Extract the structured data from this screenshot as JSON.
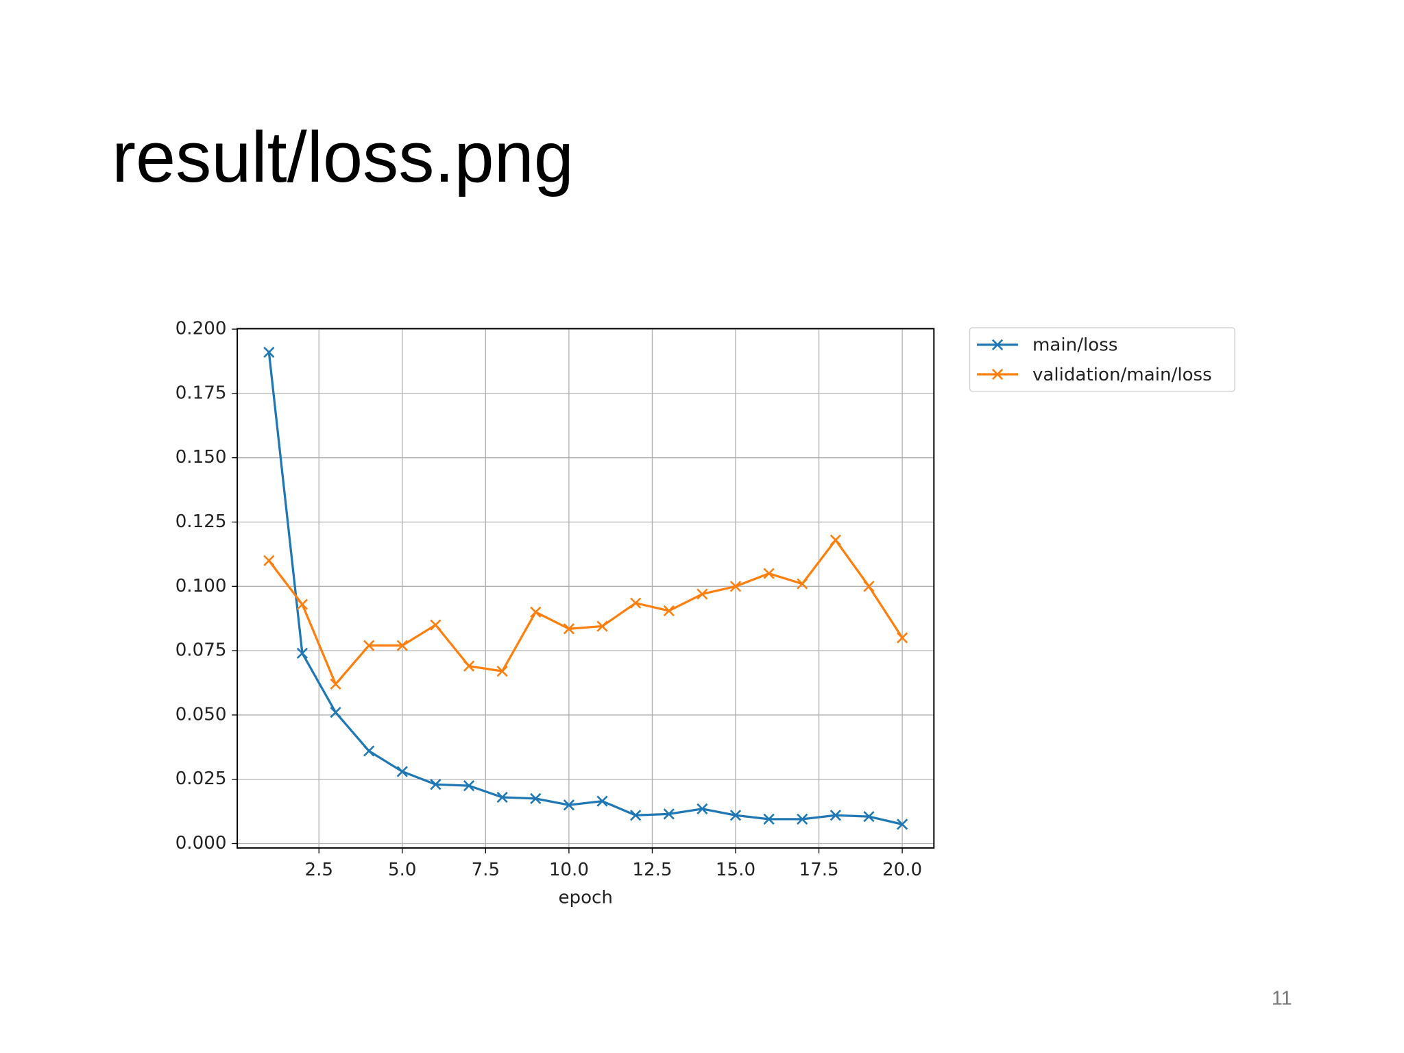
{
  "title": "result/loss.png",
  "page_number": "11",
  "chart_data": {
    "type": "line",
    "xlabel": "epoch",
    "x": [
      1,
      2,
      3,
      4,
      5,
      6,
      7,
      8,
      9,
      10,
      11,
      12,
      13,
      14,
      15,
      16,
      17,
      18,
      19,
      20
    ],
    "series": [
      {
        "name": "main/loss",
        "color": "#1f77b4",
        "values": [
          0.191,
          0.074,
          0.051,
          0.036,
          0.028,
          0.023,
          0.0225,
          0.018,
          0.0175,
          0.015,
          0.0165,
          0.011,
          0.0115,
          0.0135,
          0.011,
          0.0095,
          0.0095,
          0.011,
          0.0105,
          0.0075
        ]
      },
      {
        "name": "validation/main/loss",
        "color": "#ff7f0e",
        "values": [
          0.11,
          0.093,
          0.062,
          0.077,
          0.077,
          0.085,
          0.069,
          0.067,
          0.09,
          0.0835,
          0.0845,
          0.0935,
          0.0905,
          0.097,
          0.1,
          0.105,
          0.101,
          0.118,
          0.1,
          0.08
        ]
      }
    ],
    "xlim": [
      0.05,
      20.95
    ],
    "xticks": [
      2.5,
      {
        "value": 5,
        "label": "5.0"
      },
      7.5,
      {
        "value": 10,
        "label": "10.0"
      },
      12.5,
      {
        "value": 15,
        "label": "15.0"
      },
      17.5,
      {
        "value": 20,
        "label": "20.0"
      }
    ],
    "ylim": [
      -0.0017,
      0.2002
    ],
    "yticks": [
      {
        "value": 0,
        "label": "0.000"
      },
      {
        "value": 0.025,
        "label": "0.025"
      },
      {
        "value": 0.05,
        "label": "0.050"
      },
      {
        "value": 0.075,
        "label": "0.075"
      },
      {
        "value": 0.1,
        "label": "0.100"
      },
      {
        "value": 0.125,
        "label": "0.125"
      },
      {
        "value": 0.15,
        "label": "0.150"
      },
      {
        "value": 0.175,
        "label": "0.175"
      },
      {
        "value": 0.2,
        "label": "0.200"
      }
    ],
    "grid": true,
    "legend": "outside-upper-right",
    "marker": "x"
  }
}
